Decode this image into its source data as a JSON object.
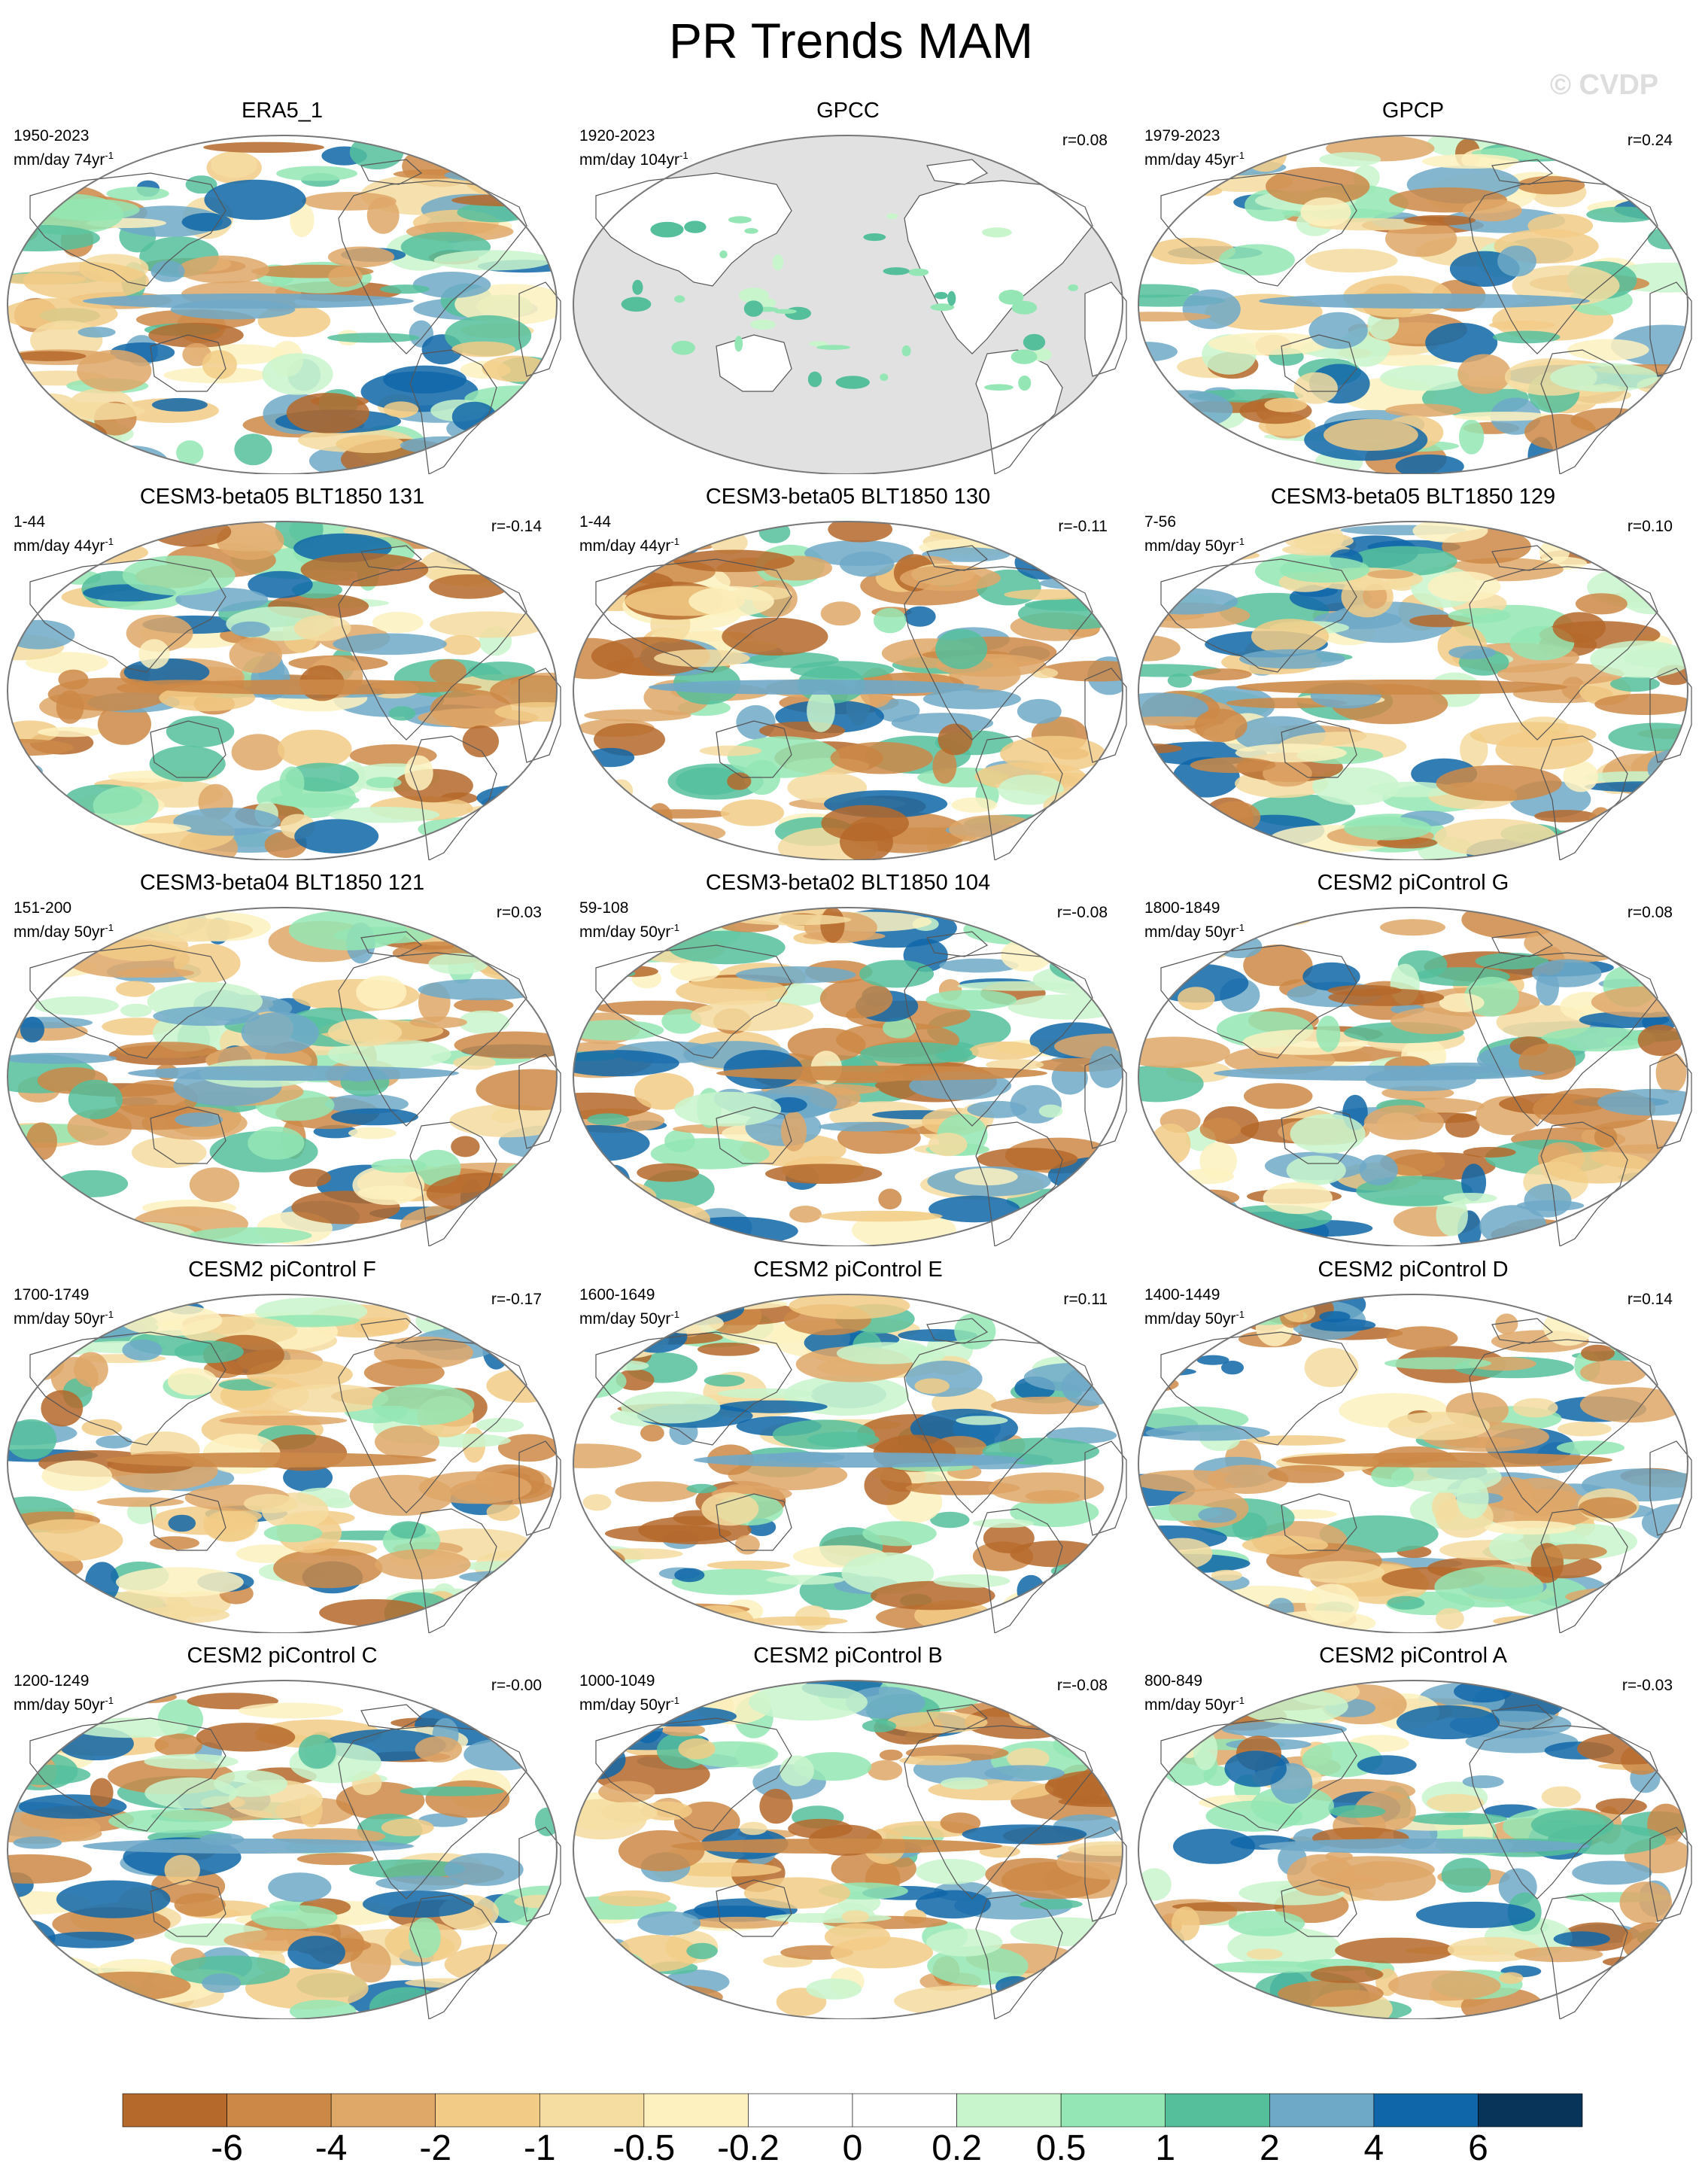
{
  "page": {
    "title": "PR Trends MAM",
    "watermark": "© CVDP"
  },
  "chart_data": [
    {
      "type": "map",
      "title": "ERA5_1",
      "period": "1950-2023",
      "units": "mm/day 74yr",
      "units_exp": "-1",
      "r": "",
      "land_masked": false
    },
    {
      "type": "map",
      "title": "GPCC",
      "period": "1920-2023",
      "units": "mm/day 104yr",
      "units_exp": "-1",
      "r": "r=0.08",
      "land_masked": true
    },
    {
      "type": "map",
      "title": "GPCP",
      "period": "1979-2023",
      "units": "mm/day 45yr",
      "units_exp": "-1",
      "r": "r=0.24",
      "land_masked": false
    },
    {
      "type": "map",
      "title": "CESM3-beta05 BLT1850 131",
      "period": "1-44",
      "units": "mm/day 44yr",
      "units_exp": "-1",
      "r": "r=-0.14",
      "land_masked": false
    },
    {
      "type": "map",
      "title": "CESM3-beta05 BLT1850 130",
      "period": "1-44",
      "units": "mm/day 44yr",
      "units_exp": "-1",
      "r": "r=-0.11",
      "land_masked": false
    },
    {
      "type": "map",
      "title": "CESM3-beta05 BLT1850 129",
      "period": "7-56",
      "units": "mm/day 50yr",
      "units_exp": "-1",
      "r": "r=0.10",
      "land_masked": false
    },
    {
      "type": "map",
      "title": "CESM3-beta04 BLT1850 121",
      "period": "151-200",
      "units": "mm/day 50yr",
      "units_exp": "-1",
      "r": "r=0.03",
      "land_masked": false
    },
    {
      "type": "map",
      "title": "CESM3-beta02 BLT1850 104",
      "period": "59-108",
      "units": "mm/day 50yr",
      "units_exp": "-1",
      "r": "r=-0.08",
      "land_masked": false
    },
    {
      "type": "map",
      "title": "CESM2 piControl G",
      "period": "1800-1849",
      "units": "mm/day 50yr",
      "units_exp": "-1",
      "r": "r=0.08",
      "land_masked": false
    },
    {
      "type": "map",
      "title": "CESM2 piControl F",
      "period": "1700-1749",
      "units": "mm/day 50yr",
      "units_exp": "-1",
      "r": "r=-0.17",
      "land_masked": false
    },
    {
      "type": "map",
      "title": "CESM2 piControl E",
      "period": "1600-1649",
      "units": "mm/day 50yr",
      "units_exp": "-1",
      "r": "r=0.11",
      "land_masked": false
    },
    {
      "type": "map",
      "title": "CESM2 piControl D",
      "period": "1400-1449",
      "units": "mm/day 50yr",
      "units_exp": "-1",
      "r": "r=0.14",
      "land_masked": false
    },
    {
      "type": "map",
      "title": "CESM2 piControl C",
      "period": "1200-1249",
      "units": "mm/day 50yr",
      "units_exp": "-1",
      "r": "r=-0.00",
      "land_masked": false
    },
    {
      "type": "map",
      "title": "CESM2 piControl B",
      "period": "1000-1049",
      "units": "mm/day 50yr",
      "units_exp": "-1",
      "r": "r=-0.08",
      "land_masked": false
    },
    {
      "type": "map",
      "title": "CESM2 piControl A",
      "period": "800-849",
      "units": "mm/day 50yr",
      "units_exp": "-1",
      "r": "r=-0.03",
      "land_masked": false
    }
  ],
  "colorbar": {
    "colors": [
      "#b5692a",
      "#cc8847",
      "#dfa768",
      "#f2cb86",
      "#f5dca0",
      "#fdf1bf",
      "#ffffff",
      "#ffffff",
      "#c9f5cc",
      "#94e6b4",
      "#55bf9c",
      "#6fa9c8",
      "#0f66a8",
      "#08345a"
    ],
    "labels": [
      "-6",
      "-4",
      "-2",
      "-1",
      "-0.5",
      "-0.2",
      "0",
      "0.2",
      "0.5",
      "1",
      "2",
      "4",
      "6"
    ]
  },
  "land_mask_color": "#e1e1e1",
  "outline_color": "#777777"
}
